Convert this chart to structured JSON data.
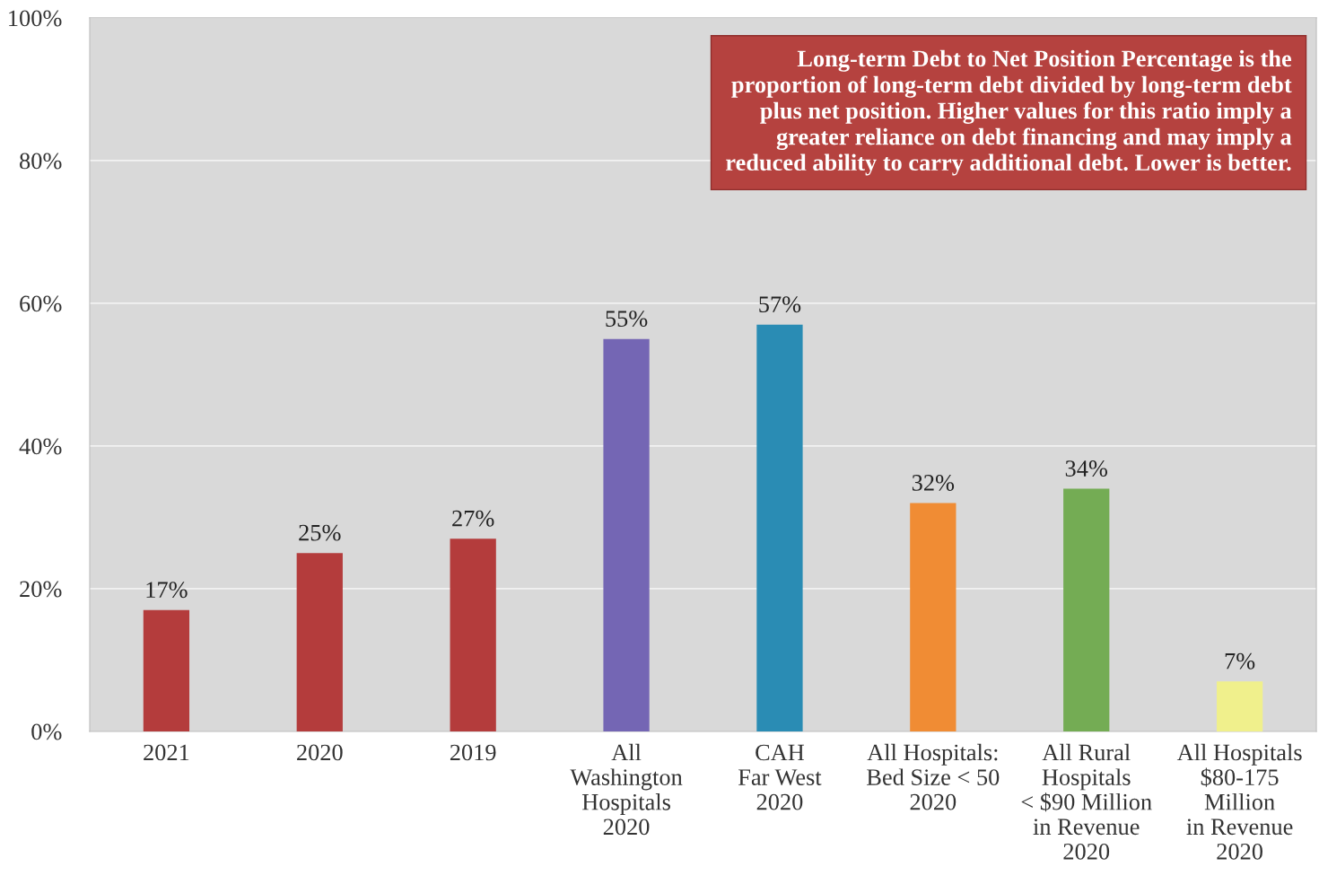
{
  "chart_data": {
    "type": "bar",
    "categories": [
      "2021",
      "2020",
      "2019",
      "All\nWashington\nHospitals\n2020",
      "CAH\nFar West\n2020",
      "All Hospitals:\nBed Size < 50\n2020",
      "All Rural\nHospitals\n< $90 Million\nin Revenue\n2020",
      "All Hospitals\n$80-175\nMillion\nin Revenue\n2020"
    ],
    "values": [
      17,
      25,
      27,
      55,
      57,
      32,
      34,
      7
    ],
    "colors": [
      "#b43c3c",
      "#b43c3c",
      "#b43c3c",
      "#7466b4",
      "#2a8cb4",
      "#f08c34",
      "#74ac54",
      "#f0f08c"
    ],
    "value_labels": [
      "17%",
      "25%",
      "27%",
      "55%",
      "57%",
      "32%",
      "34%",
      "7%"
    ],
    "ylim": [
      0,
      100
    ],
    "yticks": [
      {
        "value": 0,
        "label": "0%"
      },
      {
        "value": 20,
        "label": "20%"
      },
      {
        "value": 40,
        "label": "40%"
      },
      {
        "value": 60,
        "label": "60%"
      },
      {
        "value": 80,
        "label": "80%"
      },
      {
        "value": 100,
        "label": "100%"
      }
    ],
    "grid": "y",
    "annotations": [
      "Long-term Debt to Net Position Percentage is the\nproportion of long-term debt divided by long-term debt\nplus net position. Higher values for this ratio imply a\ngreater reliance on debt financing and may imply a\nreduced ability to carry additional debt. Lower is better."
    ]
  }
}
